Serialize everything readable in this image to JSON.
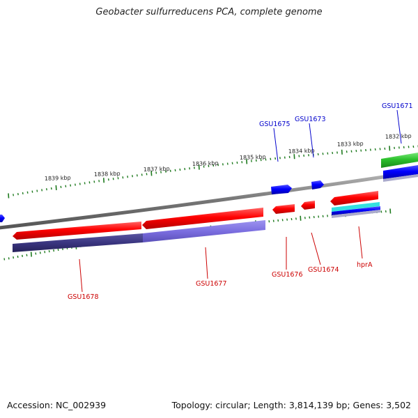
{
  "title": "Geobacter sulfurreducens PCA, complete genome",
  "footer": {
    "accession": "Accession: NC_002939",
    "summary": "Topology: circular; Length: 3,814,139 bp; Genes: 3,502"
  },
  "scale_labels": [
    "1839 kbp",
    "1838 kbp",
    "1837 kbp",
    "1836 kbp",
    "1835 kbp",
    "1834 kbp",
    "1833 kbp",
    "1832 kbp"
  ],
  "gene_labels_top": [
    "GSU1675",
    "GSU1673",
    "GSU1671"
  ],
  "gene_labels_bottom": [
    "GSU1678",
    "GSU1677",
    "GSU1676",
    "GSU1674",
    "hprA"
  ],
  "colors": {
    "cds": "#ff0000",
    "gene_blue": "#0000ff",
    "dark_purple": "#3a3580",
    "light_purple": "#7b6ee0",
    "green": "#2cc02c",
    "cyan": "#33e0e0",
    "backbone": "#888888",
    "tick_green": "#1e7a1e",
    "label_red": "#cc0000",
    "label_blue": "#0000cc"
  }
}
